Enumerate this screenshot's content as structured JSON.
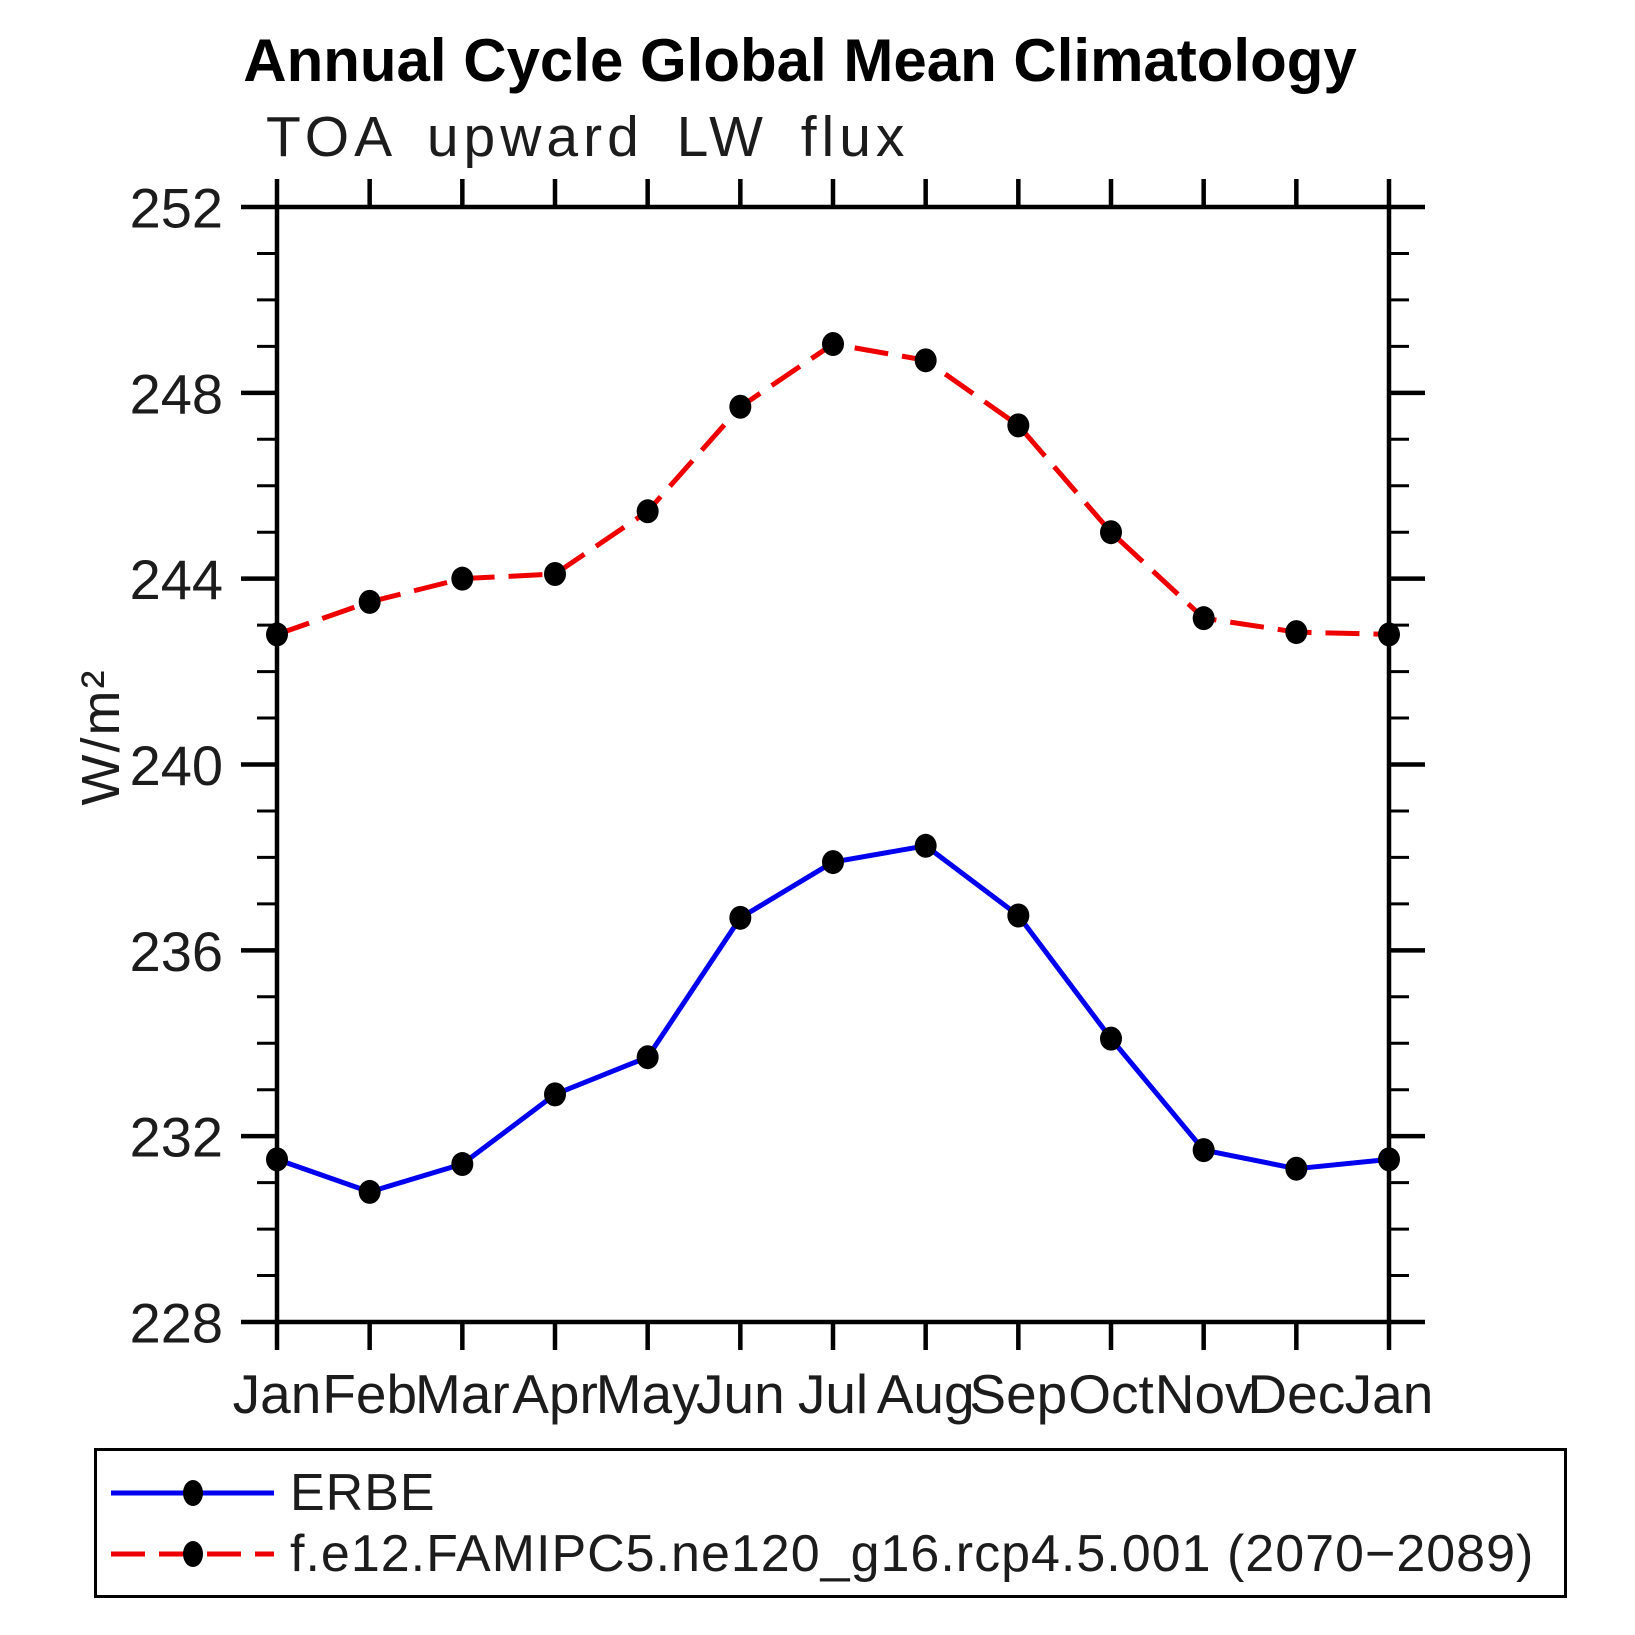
{
  "page": {
    "background": "#ffffff",
    "axis_color": "#000000",
    "text_color": "#1c1c1c"
  },
  "chart_data": {
    "type": "line",
    "title": "Annual Cycle Global Mean Climatology",
    "subtitle": "TOA upward LW flux",
    "ylabel": "W/m²",
    "xlabel": "",
    "categories": [
      "Jan",
      "Feb",
      "Mar",
      "Apr",
      "May",
      "Jun",
      "Jul",
      "Aug",
      "Sep",
      "Oct",
      "Nov",
      "Dec",
      "Jan"
    ],
    "ylim": [
      228,
      252
    ],
    "ytick_major_step": 4,
    "ytick_minor_step": 1,
    "ytick_labels": [
      "228",
      "232",
      "236",
      "240",
      "244",
      "248",
      "252"
    ],
    "grid": false,
    "legend_position": "bottom",
    "marker": "filled-circle",
    "marker_color": "#000000",
    "series": [
      {
        "name": "ERBE",
        "color": "#0000ee",
        "line_style": "solid",
        "values": [
          231.5,
          230.8,
          231.4,
          232.9,
          233.7,
          236.7,
          237.9,
          238.25,
          236.75,
          234.1,
          231.7,
          231.3,
          231.5
        ]
      },
      {
        "name": "f.e12.FAMIPC5.ne120_g16.rcp4.5.001 (2070−2089)",
        "color": "#ee0000",
        "line_style": "dashed",
        "values": [
          242.8,
          243.5,
          244.0,
          244.1,
          245.45,
          247.7,
          249.05,
          248.7,
          247.3,
          245.0,
          243.15,
          242.85,
          242.8
        ]
      }
    ]
  }
}
